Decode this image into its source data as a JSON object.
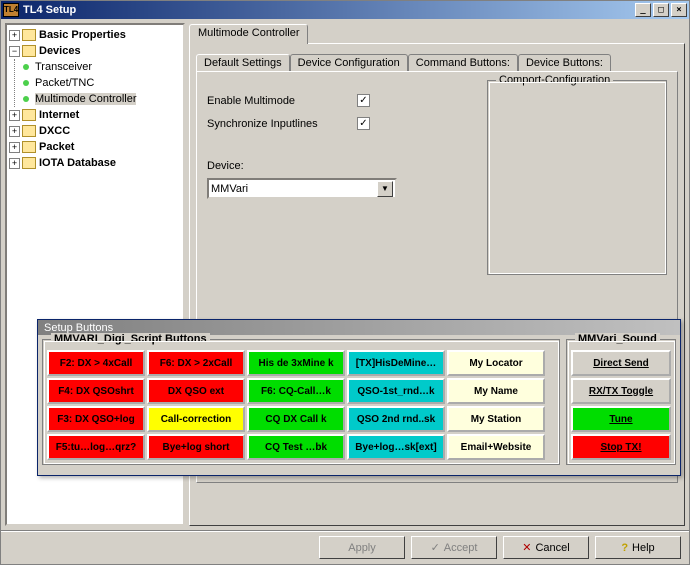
{
  "window": {
    "title": "TL4 Setup",
    "icon_text": "TL4"
  },
  "tree": {
    "nodes": [
      {
        "label": "Basic Properties",
        "exp": "+",
        "bold": true
      },
      {
        "label": "Devices",
        "exp": "−",
        "bold": true,
        "children": [
          {
            "label": "Transceiver"
          },
          {
            "label": "Packet/TNC"
          },
          {
            "label": "Multimode Controller",
            "selected": true
          }
        ]
      },
      {
        "label": "Internet",
        "exp": "+",
        "bold": true
      },
      {
        "label": "DXCC",
        "exp": "+",
        "bold": true
      },
      {
        "label": "Packet",
        "exp": "+",
        "bold": true
      },
      {
        "label": "IOTA Database",
        "exp": "+",
        "bold": true
      }
    ]
  },
  "main_tab": {
    "label": "Multimode Controller"
  },
  "sub_tabs": [
    {
      "label": "Default Settings",
      "active": true
    },
    {
      "label": "Device Configuration"
    },
    {
      "label": "Command Buttons:"
    },
    {
      "label": "Device Buttons:"
    }
  ],
  "settings": {
    "enable_multimode": {
      "label": "Enable Multimode",
      "checked": true
    },
    "sync_inputlines": {
      "label": "Synchronize Inputlines",
      "checked": true
    },
    "device_label": "Device:",
    "device_value": "MMVari"
  },
  "comport_group": "Comport-Configuration",
  "setup_buttons_window": {
    "title": "Setup Buttons"
  },
  "script_group_title": "MMVARI_Digi_Script Buttons",
  "sound_group_title": "MMVari_Sound",
  "colors": {
    "red": {
      "bg": "#ff0000",
      "fg": "#000000"
    },
    "yellow": {
      "bg": "#ffff00",
      "fg": "#000000"
    },
    "green": {
      "bg": "#00dd00",
      "fg": "#000000"
    },
    "cyan": {
      "bg": "#00caca",
      "fg": "#000000"
    },
    "white": {
      "bg": "#ffffdd",
      "fg": "#000000"
    },
    "plain": {
      "bg": "#d4d0c8",
      "fg": "#000000"
    }
  },
  "script_buttons": [
    [
      {
        "label": "F2: DX > 4xCall",
        "c": "red"
      },
      {
        "label": "F6: DX > 2xCall",
        "c": "red"
      },
      {
        "label": "His de 3xMine k",
        "c": "green"
      },
      {
        "label": "[TX]HisDeMine…",
        "c": "cyan"
      },
      {
        "label": "My Locator",
        "c": "white"
      }
    ],
    [
      {
        "label": "F4: DX QSOshrt",
        "c": "red"
      },
      {
        "label": "DX QSO ext",
        "c": "red"
      },
      {
        "label": "F6: CQ-Call…k",
        "c": "green"
      },
      {
        "label": "QSO-1st_rnd…k",
        "c": "cyan"
      },
      {
        "label": "My Name",
        "c": "white"
      }
    ],
    [
      {
        "label": "F3: DX QSO+log",
        "c": "red"
      },
      {
        "label": "Call-correction",
        "c": "yellow"
      },
      {
        "label": "CQ DX Call k",
        "c": "green"
      },
      {
        "label": "QSO 2nd rnd..sk",
        "c": "cyan"
      },
      {
        "label": "My Station",
        "c": "white"
      }
    ],
    [
      {
        "label": "F5:tu…log…qrz?",
        "c": "red"
      },
      {
        "label": "Bye+log short",
        "c": "red"
      },
      {
        "label": "CQ Test …bk",
        "c": "green"
      },
      {
        "label": "Bye+log…sk[ext]",
        "c": "cyan"
      },
      {
        "label": "Email+Website",
        "c": "white"
      }
    ]
  ],
  "sound_buttons": [
    {
      "label": "Direct Send",
      "c": "plain",
      "underline": true
    },
    {
      "label": "RX/TX Toggle",
      "c": "plain",
      "underline": true
    },
    {
      "label": "Tune",
      "c": "green",
      "underline": true
    },
    {
      "label": "Stop TX!",
      "c": "red",
      "underline": true
    }
  ],
  "dialog_buttons": {
    "apply": {
      "label": "Apply",
      "disabled": true
    },
    "accept": {
      "label": "Accept",
      "disabled": true,
      "icon": "✓"
    },
    "cancel": {
      "label": "Cancel",
      "icon": "✕",
      "icon_color": "#b00000"
    },
    "help": {
      "label": "Help",
      "icon": "?",
      "icon_color": "#c0a000"
    }
  }
}
